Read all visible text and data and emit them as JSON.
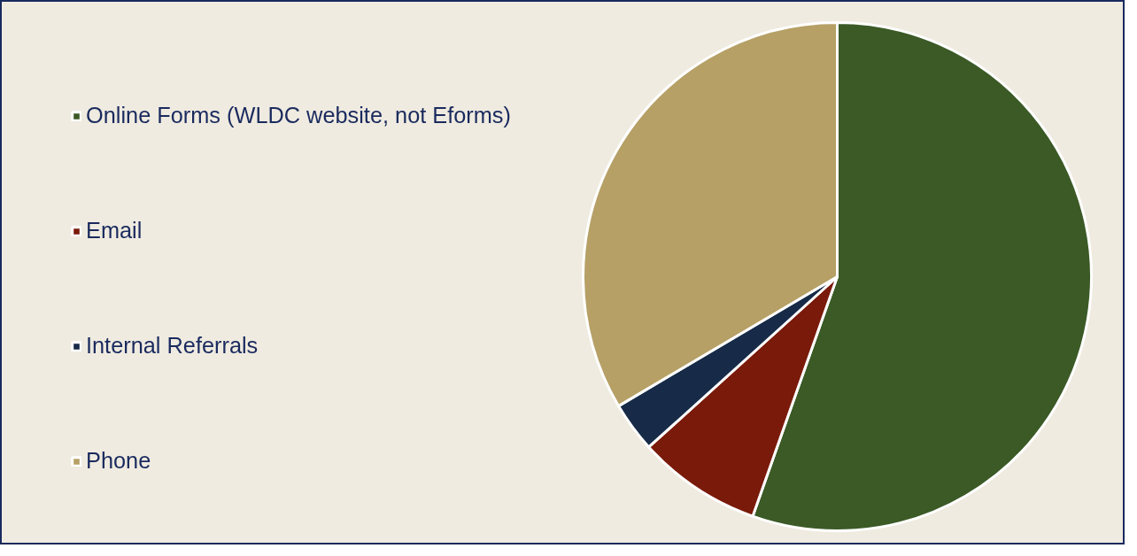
{
  "chart_data": {
    "type": "pie",
    "categories": [
      "Online Forms (WLDC website, not Eforms)",
      "Email",
      "Internal Referrals",
      "Phone"
    ],
    "values": [
      55.4,
      7.9,
      3.2,
      33.5
    ],
    "colors": [
      "#3b5a26",
      "#7a1a0a",
      "#172b48",
      "#b6a066"
    ],
    "legend": "left"
  }
}
